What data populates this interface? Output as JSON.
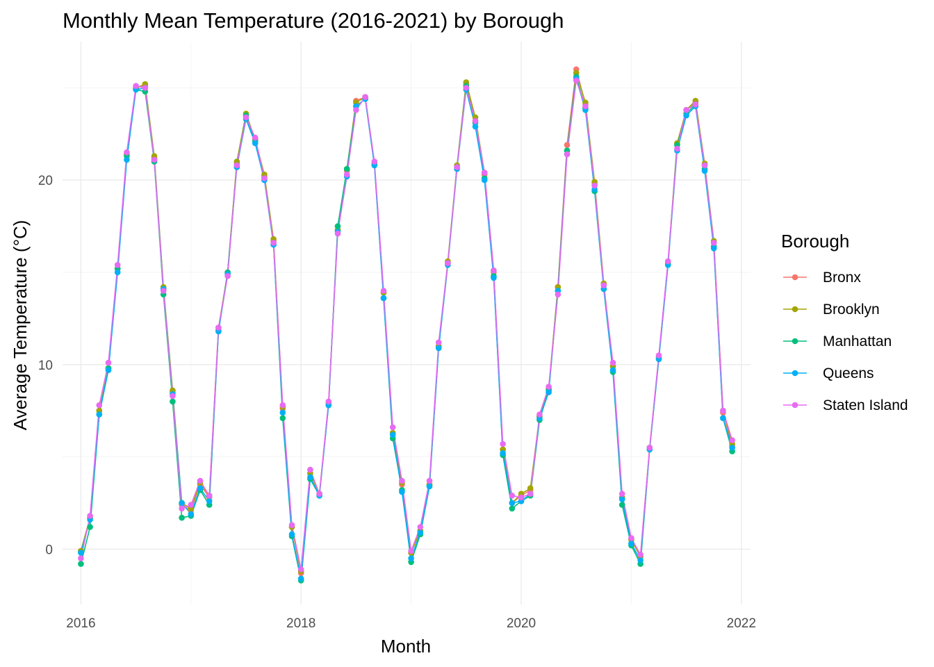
{
  "chart_data": {
    "type": "line",
    "title": "Monthly Mean Temperature (2016-2021) by Borough",
    "xlabel": "Month",
    "ylabel": "Average Temperature (°C)",
    "x_ticks": [
      "2016",
      "2018",
      "2020",
      "2022"
    ],
    "y_ticks": [
      "0",
      "10",
      "20"
    ],
    "xlim": [
      "2015-11-01",
      "2022-02-01"
    ],
    "ylim": [
      -3,
      27.5
    ],
    "grid": true,
    "legend": {
      "title": "Borough",
      "position": "right"
    },
    "x": [
      "2016-01",
      "2016-02",
      "2016-03",
      "2016-04",
      "2016-05",
      "2016-06",
      "2016-07",
      "2016-08",
      "2016-09",
      "2016-10",
      "2016-11",
      "2016-12",
      "2017-01",
      "2017-02",
      "2017-03",
      "2017-04",
      "2017-05",
      "2017-06",
      "2017-07",
      "2017-08",
      "2017-09",
      "2017-10",
      "2017-11",
      "2017-12",
      "2018-01",
      "2018-02",
      "2018-03",
      "2018-04",
      "2018-05",
      "2018-06",
      "2018-07",
      "2018-08",
      "2018-09",
      "2018-10",
      "2018-11",
      "2018-12",
      "2019-01",
      "2019-02",
      "2019-03",
      "2019-04",
      "2019-05",
      "2019-06",
      "2019-07",
      "2019-08",
      "2019-09",
      "2019-10",
      "2019-11",
      "2019-12",
      "2020-01",
      "2020-02",
      "2020-03",
      "2020-04",
      "2020-05",
      "2020-06",
      "2020-07",
      "2020-08",
      "2020-09",
      "2020-10",
      "2020-11",
      "2020-12",
      "2021-01",
      "2021-02",
      "2021-03",
      "2021-04",
      "2021-05",
      "2021-06",
      "2021-07",
      "2021-08",
      "2021-09",
      "2021-10",
      "2021-11",
      "2021-12"
    ],
    "series": [
      {
        "name": "Bronx",
        "color": "#F8766D",
        "values": [
          -0.1,
          1.7,
          7.5,
          9.8,
          15.2,
          21.4,
          25.0,
          25.1,
          21.2,
          14.1,
          8.5,
          2.4,
          2.1,
          3.5,
          2.8,
          11.9,
          15.0,
          20.9,
          23.5,
          22.2,
          20.2,
          16.7,
          7.6,
          1.2,
          -1.3,
          4.1,
          3.0,
          7.9,
          17.3,
          20.5,
          24.3,
          24.5,
          20.9,
          13.9,
          6.3,
          3.5,
          -0.2,
          1.0,
          3.5,
          11.0,
          15.5,
          20.7,
          25.2,
          23.2,
          20.3,
          15.0,
          5.4,
          2.5,
          2.9,
          3.2,
          7.2,
          8.7,
          14.2,
          21.9,
          26.0,
          24.1,
          19.8,
          14.3,
          9.9,
          2.8,
          0.5,
          -0.4,
          5.5,
          10.4,
          15.5,
          21.9,
          23.8,
          24.2,
          20.8,
          16.6,
          7.4,
          5.6
        ]
      },
      {
        "name": "Brooklyn",
        "color": "#A3A500",
        "values": [
          -0.1,
          1.7,
          7.5,
          9.8,
          15.2,
          21.4,
          25.0,
          25.2,
          21.3,
          14.2,
          8.6,
          2.5,
          2.2,
          3.6,
          2.9,
          12.0,
          15.0,
          21.0,
          23.6,
          22.2,
          20.3,
          16.8,
          7.7,
          1.2,
          -1.2,
          4.1,
          3.0,
          7.9,
          17.3,
          20.6,
          24.2,
          24.5,
          20.9,
          13.9,
          6.3,
          3.6,
          -0.2,
          1.0,
          3.5,
          11.0,
          15.6,
          20.8,
          25.3,
          23.4,
          20.4,
          15.1,
          5.4,
          2.5,
          3.0,
          3.3,
          7.2,
          8.7,
          14.2,
          21.6,
          25.8,
          24.2,
          19.9,
          14.4,
          9.9,
          2.8,
          0.5,
          -0.4,
          5.5,
          10.4,
          15.5,
          22.0,
          23.8,
          24.3,
          20.9,
          16.7,
          7.5,
          5.7
        ]
      },
      {
        "name": "Manhattan",
        "color": "#00BF7D",
        "values": [
          -0.8,
          1.2,
          7.3,
          9.8,
          15.2,
          21.3,
          24.9,
          24.8,
          21.0,
          13.8,
          8.0,
          1.7,
          1.8,
          3.2,
          2.4,
          11.8,
          15.0,
          20.8,
          23.5,
          22.1,
          20.1,
          16.5,
          7.1,
          0.7,
          -1.7,
          3.8,
          2.9,
          7.8,
          17.5,
          20.6,
          24.0,
          24.4,
          20.8,
          13.6,
          6.0,
          3.2,
          -0.7,
          0.8,
          3.4,
          10.9,
          15.5,
          20.7,
          25.1,
          23.1,
          20.1,
          14.8,
          5.1,
          2.2,
          2.6,
          2.9,
          7.0,
          8.6,
          14.0,
          21.6,
          25.6,
          23.9,
          19.4,
          14.1,
          9.6,
          2.4,
          0.2,
          -0.8,
          5.4,
          10.3,
          15.4,
          21.9,
          23.6,
          24.1,
          20.6,
          16.4,
          7.1,
          5.3
        ]
      },
      {
        "name": "Queens",
        "color": "#00B0F6",
        "values": [
          -0.2,
          1.6,
          7.3,
          9.7,
          15.0,
          21.1,
          24.9,
          25.0,
          21.1,
          14.1,
          8.4,
          2.5,
          1.9,
          3.3,
          2.6,
          11.8,
          14.9,
          20.7,
          23.3,
          22.0,
          20.0,
          16.5,
          7.4,
          0.8,
          -1.6,
          3.9,
          2.9,
          7.8,
          17.2,
          20.2,
          24.0,
          24.4,
          20.8,
          13.6,
          6.2,
          3.1,
          -0.5,
          0.9,
          3.4,
          10.9,
          15.4,
          20.6,
          24.9,
          22.9,
          20.0,
          14.7,
          5.2,
          2.5,
          2.6,
          3.0,
          7.1,
          8.5,
          14.0,
          21.4,
          25.5,
          23.8,
          19.5,
          14.1,
          9.7,
          2.7,
          0.3,
          -0.6,
          5.4,
          10.3,
          15.4,
          21.6,
          23.5,
          24.0,
          20.5,
          16.3,
          7.1,
          5.5
        ]
      },
      {
        "name": "Staten Island",
        "color": "#E76BF3",
        "values": [
          -0.5,
          1.8,
          7.8,
          10.1,
          15.4,
          21.5,
          25.1,
          25.0,
          21.1,
          14.0,
          8.3,
          2.2,
          2.4,
          3.7,
          2.9,
          12.0,
          14.8,
          20.8,
          23.4,
          22.3,
          20.1,
          16.6,
          7.8,
          1.3,
          -1.1,
          4.3,
          3.0,
          8.0,
          17.1,
          20.3,
          23.8,
          24.5,
          21.0,
          14.0,
          6.6,
          3.7,
          -0.1,
          1.2,
          3.7,
          11.2,
          15.5,
          20.7,
          25.0,
          23.2,
          20.4,
          15.1,
          5.7,
          2.9,
          2.8,
          3.0,
          7.3,
          8.8,
          13.8,
          21.4,
          25.4,
          24.0,
          19.7,
          14.3,
          10.1,
          3.0,
          0.6,
          -0.3,
          5.5,
          10.5,
          15.6,
          21.7,
          23.8,
          24.1,
          20.8,
          16.6,
          7.5,
          5.9
        ]
      }
    ]
  }
}
